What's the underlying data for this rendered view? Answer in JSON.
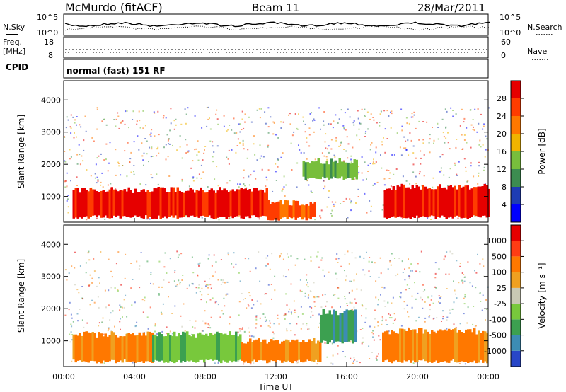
{
  "header": {
    "station": "McMurdo (fitACF)",
    "beam": "Beam 11",
    "date": "28/Mar/2011"
  },
  "noise_panel": {
    "left_label": "N.Sky",
    "right_label": "N.Search",
    "left_ticks": [
      "10^5",
      "10^0"
    ],
    "right_ticks": [
      "10^5",
      "10^0"
    ]
  },
  "freq_panel": {
    "left_label_1": "Freq.",
    "left_label_2": "[MHz]",
    "right_label": "Nave",
    "left_ticks": [
      "18",
      "8"
    ],
    "right_ticks": [
      "60",
      "0"
    ]
  },
  "cpid_panel": {
    "label": "CPID",
    "text": "normal (fast) 151 RF"
  },
  "chart_data": [
    {
      "type": "heatmap",
      "name": "power",
      "ylabel": "Slant Range [km]",
      "ylim": [
        200,
        4600
      ],
      "yticks": [
        "4000",
        "3000",
        "2000",
        "1000"
      ],
      "xlim": [
        "00:00",
        "24:00"
      ],
      "colorbar_label": "Power [dB]",
      "colorbar_ticks": [
        "28",
        "24",
        "20",
        "16",
        "12",
        "8",
        "4"
      ],
      "colors": [
        "#0000ff",
        "#1e3cb4",
        "#3c8c50",
        "#78be3c",
        "#f0b400",
        "#ff7800",
        "#ff3c00",
        "#e60000"
      ],
      "bands": [
        {
          "from_h": 0.5,
          "to_h": 11.5,
          "lo_km": 300,
          "hi_km": 1300,
          "level": 7
        },
        {
          "from_h": 11.5,
          "to_h": 14.2,
          "lo_km": 250,
          "hi_km": 900,
          "level": 6
        },
        {
          "from_h": 18.1,
          "to_h": 24.0,
          "lo_km": 300,
          "hi_km": 1400,
          "level": 7
        },
        {
          "from_h": 13.5,
          "to_h": 16.5,
          "lo_km": 1500,
          "hi_km": 2200,
          "level": 3
        }
      ]
    },
    {
      "type": "heatmap",
      "name": "velocity",
      "ylabel": "Slant Range [km]",
      "ylim": [
        200,
        4600
      ],
      "yticks": [
        "4000",
        "3000",
        "2000",
        "1000"
      ],
      "xlim": [
        "00:00",
        "24:00"
      ],
      "xticks": [
        "00:00",
        "04:00",
        "08:00",
        "12:00",
        "16:00",
        "20:00",
        "00:00"
      ],
      "xlabel": "Time UT",
      "colorbar_label": "Velocity [m s⁻¹]",
      "colorbar_ticks": [
        "1000",
        "500",
        "100",
        "25",
        "-25",
        "-100",
        "-500",
        "-1000"
      ],
      "colors": [
        "#2846c8",
        "#3c8cb4",
        "#3ca050",
        "#78c83c",
        "#c8c8b4",
        "#f0a020",
        "#ff7800",
        "#ff3c14",
        "#e60000"
      ],
      "bands": [
        {
          "from_h": 0.5,
          "to_h": 5.0,
          "lo_km": 300,
          "hi_km": 1300,
          "level": 6
        },
        {
          "from_h": 5.0,
          "to_h": 10.0,
          "lo_km": 300,
          "hi_km": 1300,
          "level": 3
        },
        {
          "from_h": 10.0,
          "to_h": 14.5,
          "lo_km": 300,
          "hi_km": 1100,
          "level": 6
        },
        {
          "from_h": 14.5,
          "to_h": 16.5,
          "lo_km": 900,
          "hi_km": 2000,
          "level": 2
        },
        {
          "from_h": 18.0,
          "to_h": 24.0,
          "lo_km": 300,
          "hi_km": 1400,
          "level": 6
        }
      ]
    }
  ]
}
